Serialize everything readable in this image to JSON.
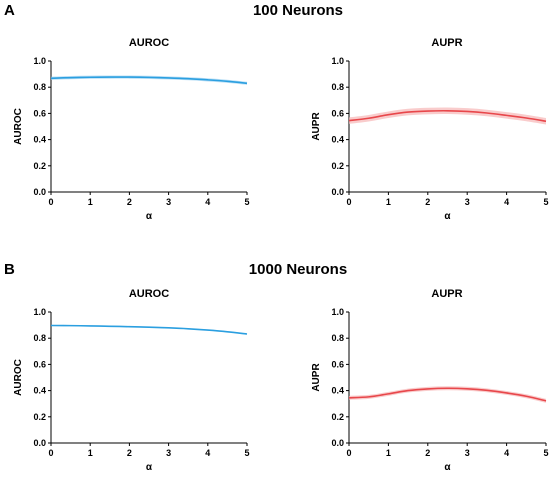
{
  "panels": [
    {
      "letter": "A",
      "title": "100 Neurons"
    },
    {
      "letter": "B",
      "title": "1000 Neurons"
    }
  ],
  "chart_data": [
    {
      "type": "line",
      "panel": "A",
      "title": "AUROC",
      "xlabel": "α",
      "ylabel": "AUROC",
      "xlim": [
        0,
        5
      ],
      "ylim": [
        0,
        1
      ],
      "xticks": [
        0,
        1,
        2,
        3,
        4,
        5
      ],
      "yticks": [
        "0.0",
        "0.2",
        "0.4",
        "0.6",
        "0.8",
        "1.0"
      ],
      "grid": false,
      "legend": "none",
      "color": "#2b9fe0",
      "band_color": "#9fd3f2",
      "series": [
        {
          "x": [
            0,
            0.5,
            1,
            1.5,
            2,
            2.5,
            3,
            3.5,
            4,
            4.5,
            5
          ],
          "y": [
            0.868,
            0.873,
            0.876,
            0.877,
            0.877,
            0.875,
            0.871,
            0.865,
            0.856,
            0.845,
            0.83
          ],
          "band": 0.012
        }
      ]
    },
    {
      "type": "line",
      "panel": "A",
      "title": "AUPR",
      "xlabel": "α",
      "ylabel": "AUPR",
      "xlim": [
        0,
        5
      ],
      "ylim": [
        0,
        1
      ],
      "xticks": [
        0,
        1,
        2,
        3,
        4,
        5
      ],
      "yticks": [
        "0.0",
        "0.2",
        "0.4",
        "0.6",
        "0.8",
        "1.0"
      ],
      "grid": false,
      "legend": "none",
      "color": "#e8474b",
      "band_color": "#f6b6b7",
      "series": [
        {
          "x": [
            0,
            0.5,
            1,
            1.5,
            2,
            2.5,
            3,
            3.5,
            4,
            4.5,
            5
          ],
          "y": [
            0.545,
            0.563,
            0.59,
            0.61,
            0.618,
            0.62,
            0.615,
            0.603,
            0.585,
            0.565,
            0.54
          ],
          "band": 0.025
        }
      ]
    },
    {
      "type": "line",
      "panel": "B",
      "title": "AUROC",
      "xlabel": "α",
      "ylabel": "AUROC",
      "xlim": [
        0,
        5
      ],
      "ylim": [
        0,
        1
      ],
      "xticks": [
        0,
        1,
        2,
        3,
        4,
        5
      ],
      "yticks": [
        "0.0",
        "0.2",
        "0.4",
        "0.6",
        "0.8",
        "1.0"
      ],
      "grid": false,
      "legend": "none",
      "color": "#2b9fe0",
      "band_color": "#9fd3f2",
      "series": [
        {
          "x": [
            0,
            0.5,
            1,
            1.5,
            2,
            2.5,
            3,
            3.5,
            4,
            4.5,
            5
          ],
          "y": [
            0.897,
            0.896,
            0.894,
            0.891,
            0.888,
            0.884,
            0.879,
            0.872,
            0.862,
            0.849,
            0.832
          ],
          "band": 0.004
        }
      ]
    },
    {
      "type": "line",
      "panel": "B",
      "title": "AUPR",
      "xlabel": "α",
      "ylabel": "AUPR",
      "xlim": [
        0,
        5
      ],
      "ylim": [
        0,
        1
      ],
      "xticks": [
        0,
        1,
        2,
        3,
        4,
        5
      ],
      "yticks": [
        "0.0",
        "0.2",
        "0.4",
        "0.6",
        "0.8",
        "1.0"
      ],
      "grid": false,
      "legend": "none",
      "color": "#e8474b",
      "band_color": "#f6b6b7",
      "series": [
        {
          "x": [
            0,
            0.5,
            1,
            1.5,
            2,
            2.5,
            3,
            3.5,
            4,
            4.5,
            5
          ],
          "y": [
            0.345,
            0.352,
            0.375,
            0.4,
            0.413,
            0.418,
            0.414,
            0.402,
            0.382,
            0.357,
            0.322
          ],
          "band": 0.015
        }
      ]
    }
  ]
}
